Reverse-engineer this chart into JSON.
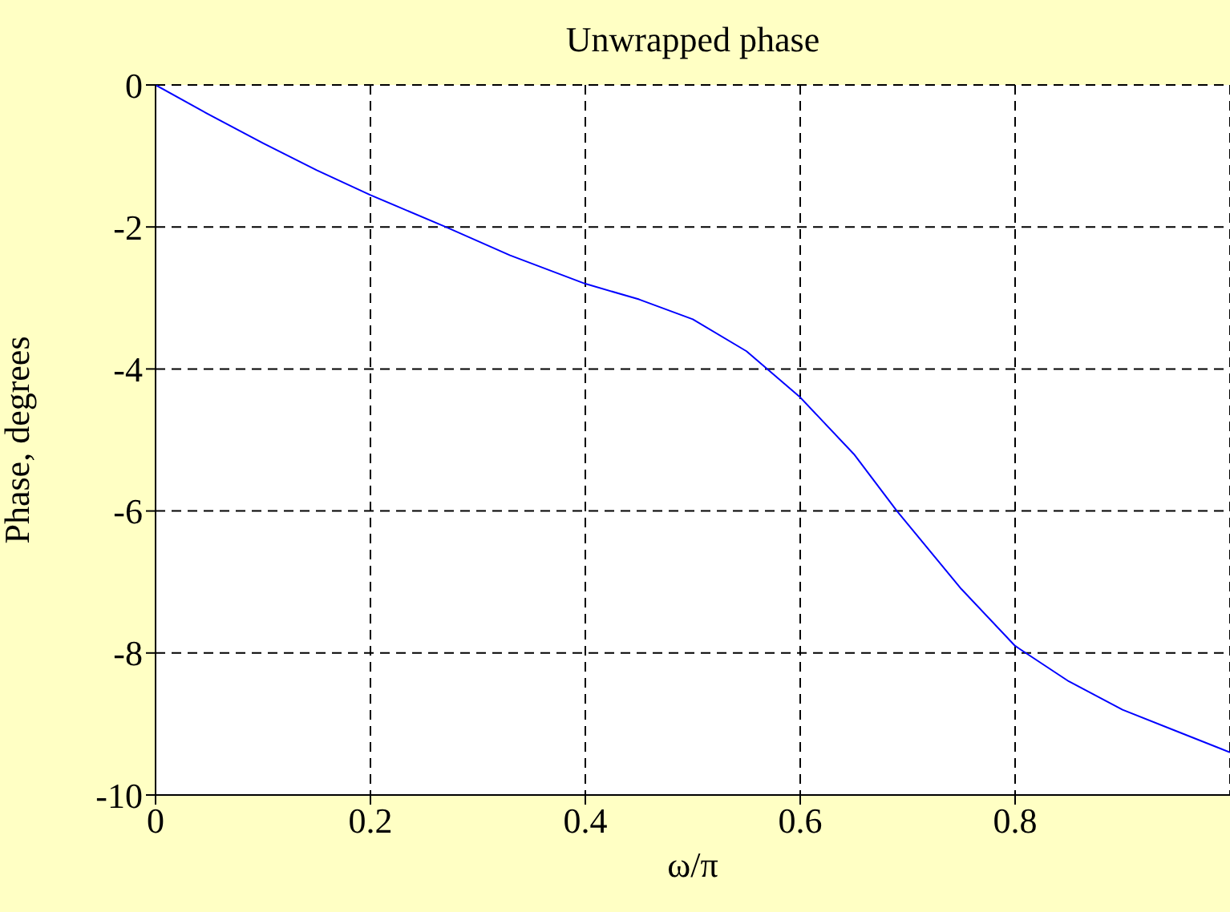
{
  "chart_data": {
    "type": "line",
    "title": "Unwrapped phase",
    "xlabel": "ω/π",
    "ylabel": "Phase, degrees",
    "xlim": [
      0,
      1
    ],
    "xticks": [
      0,
      0.2,
      0.4,
      0.6,
      0.8
    ],
    "ylim": [
      -10,
      0
    ],
    "yticks": [
      -10,
      -8,
      -6,
      -4,
      -2,
      0
    ],
    "grid": true,
    "marker": "none",
    "line_style": "solid",
    "x": [
      0,
      0.05,
      0.1,
      0.15,
      0.2,
      0.27,
      0.33,
      0.4,
      0.45,
      0.5,
      0.55,
      0.6,
      0.65,
      0.69,
      0.75,
      0.8,
      0.85,
      0.9,
      0.95,
      1.0
    ],
    "series": [
      {
        "color": "#0000ff",
        "values": [
          0,
          -0.42,
          -0.82,
          -1.2,
          -1.55,
          -2.0,
          -2.4,
          -2.8,
          -3.02,
          -3.3,
          -3.75,
          -4.4,
          -5.2,
          -6.0,
          -7.1,
          -7.9,
          -8.4,
          -8.8,
          -9.1,
          -9.4
        ]
      }
    ]
  }
}
